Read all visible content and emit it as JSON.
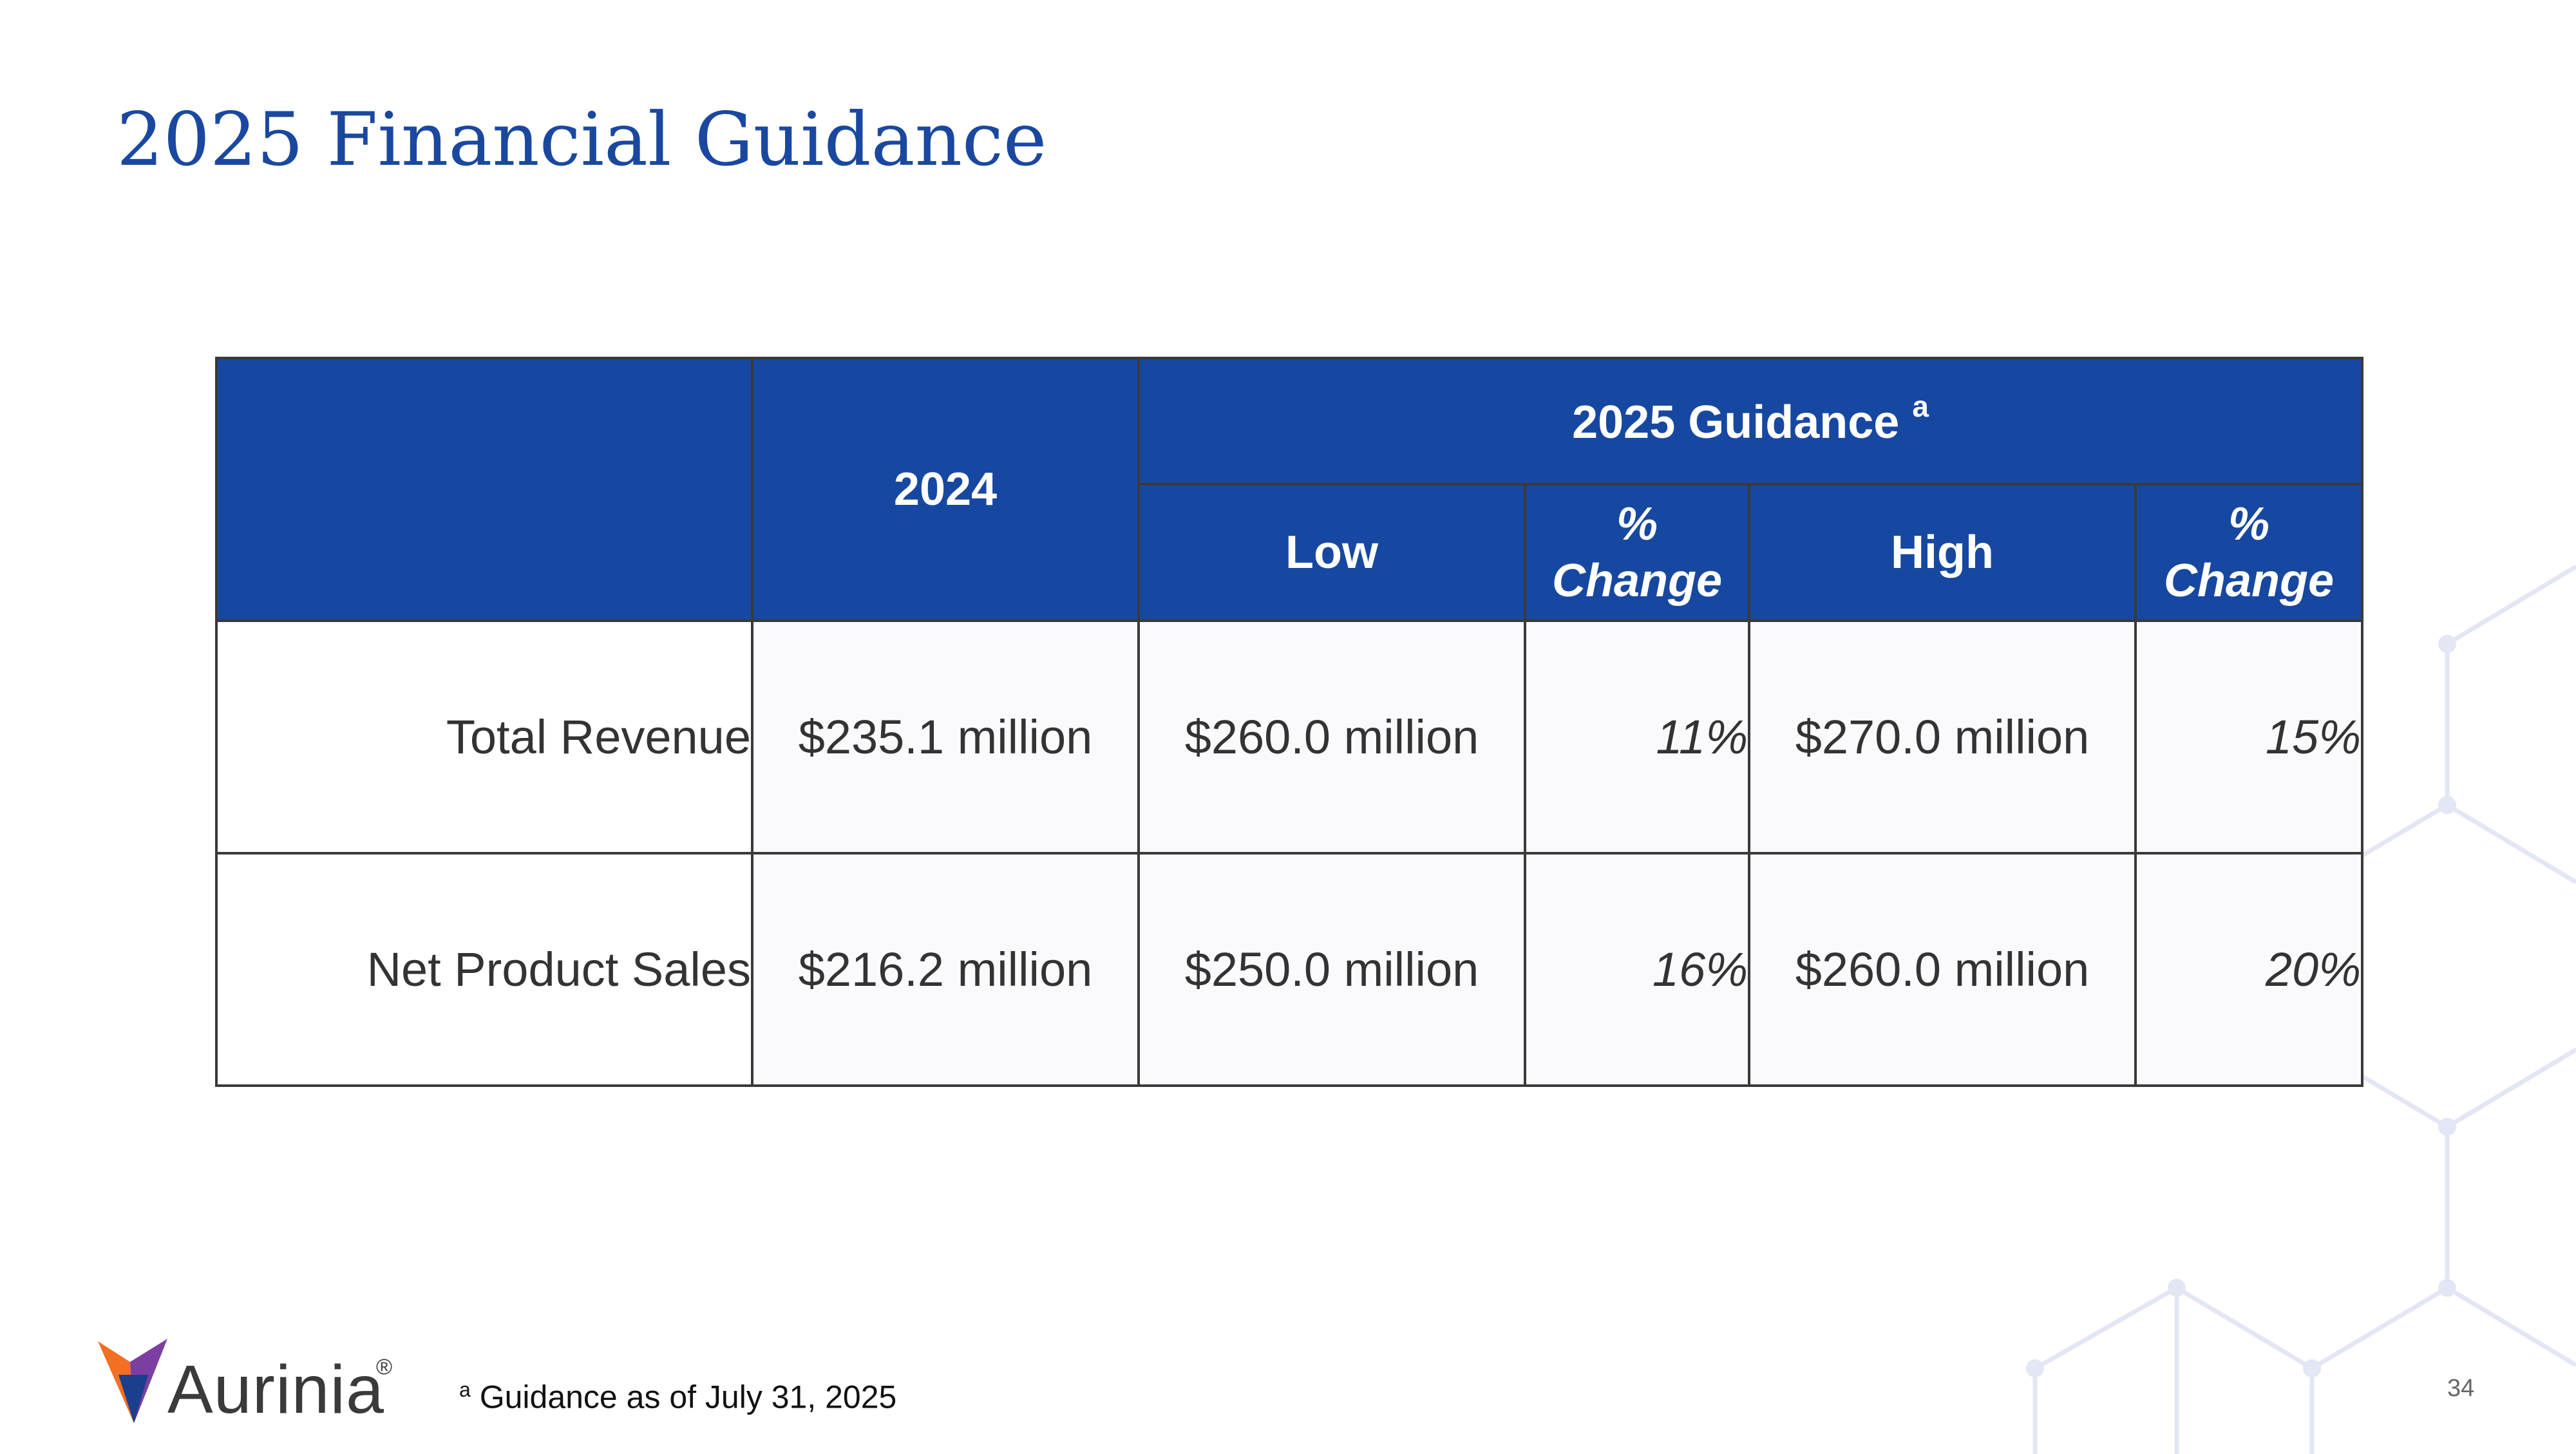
{
  "slide": {
    "title": "2025 Financial Guidance",
    "page_number": "34"
  },
  "table": {
    "header": {
      "col_2024": "2024",
      "group_label": "2025 Guidance",
      "group_sup": "a",
      "low": "Low",
      "pct_change_1a": "%",
      "pct_change_1b": "Change",
      "high": "High",
      "pct_change_2a": "%",
      "pct_change_2b": "Change"
    },
    "rows": [
      {
        "label": "Total Revenue",
        "y2024": "$235.1 million",
        "low": "$260.0 million",
        "low_pct": "11%",
        "high": "$270.0 million",
        "high_pct": "15%"
      },
      {
        "label": "Net Product Sales",
        "y2024": "$216.2 million",
        "low": "$250.0 million",
        "low_pct": "16%",
        "high": "$260.0 million",
        "high_pct": "20%"
      }
    ]
  },
  "footnote": {
    "marker": "a",
    "text": "Guidance as of July 31, 2025"
  },
  "logo": {
    "word": "Aurinia",
    "mark": "®",
    "colors": [
      "#f36f21",
      "#1b3f8f",
      "#7a3fa0"
    ]
  }
}
